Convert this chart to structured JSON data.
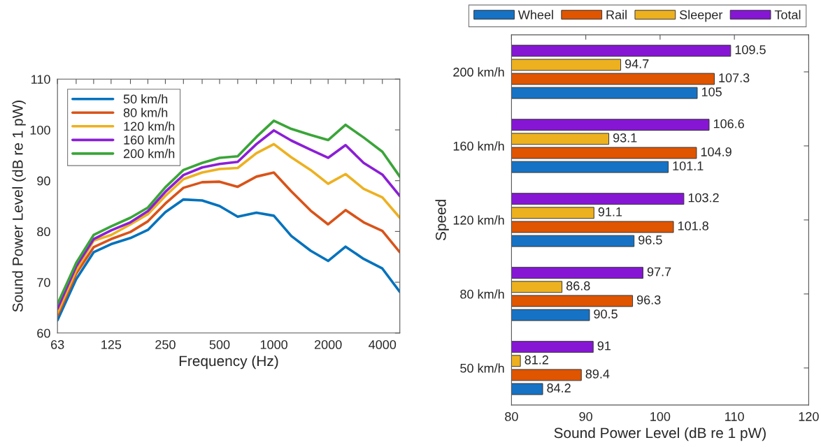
{
  "chart_data": [
    {
      "type": "line",
      "xlabel": "Frequency (Hz)",
      "ylabel": "Sound Power Level (dB re 1 pW)",
      "log": "x",
      "x": [
        63,
        80,
        100,
        125,
        160,
        200,
        250,
        315,
        400,
        500,
        630,
        800,
        1000,
        1250,
        1600,
        2000,
        2500,
        3150,
        4000,
        5000
      ],
      "xlim": [
        63,
        5000
      ],
      "xticks": [
        63,
        {
          "value": 80,
          "label": null
        },
        {
          "value": 100,
          "label": null
        },
        125,
        {
          "value": 160,
          "label": null
        },
        {
          "value": 200,
          "label": null
        },
        250,
        {
          "value": 315,
          "label": null
        },
        {
          "value": 400,
          "label": null
        },
        500,
        {
          "value": 630,
          "label": null
        },
        {
          "value": 800,
          "label": null
        },
        1000,
        {
          "value": 1250,
          "label": null
        },
        {
          "value": 1600,
          "label": null
        },
        2000,
        {
          "value": 2500,
          "label": null
        },
        {
          "value": 3150,
          "label": null
        },
        4000
      ],
      "ylim": [
        60,
        110
      ],
      "yticks": [
        60,
        70,
        80,
        90,
        100,
        110
      ],
      "grid": false,
      "legend": "top left",
      "marker": "none",
      "line_style": "solid",
      "series": [
        {
          "name": "50 km/h",
          "color": "#0072bd",
          "values": [
            62.5,
            70.6,
            75.9,
            77.5,
            78.7,
            80.3,
            83.8,
            86.3,
            86.1,
            85.0,
            82.9,
            83.7,
            83.1,
            79.1,
            76.2,
            74.2,
            77.0,
            74.6,
            72.7,
            68.1
          ]
        },
        {
          "name": "80 km/h",
          "color": "#d95319",
          "values": [
            63.4,
            71.7,
            76.9,
            78.5,
            79.9,
            82.0,
            85.5,
            88.6,
            89.7,
            89.8,
            88.8,
            90.8,
            91.6,
            87.9,
            84.1,
            81.4,
            84.2,
            81.8,
            80.1,
            75.9
          ]
        },
        {
          "name": "120 km/h",
          "color": "#edb120",
          "values": [
            64.0,
            72.3,
            78.2,
            79.3,
            81.4,
            83.4,
            87.0,
            90.3,
            91.6,
            92.3,
            92.5,
            95.4,
            97.2,
            94.6,
            92.1,
            89.4,
            91.3,
            88.4,
            86.7,
            82.7
          ]
        },
        {
          "name": "160 km/h",
          "color": "#8b1ed6",
          "values": [
            64.8,
            73.1,
            78.5,
            80.2,
            81.8,
            84.0,
            87.8,
            91.1,
            92.6,
            93.3,
            93.7,
            97.2,
            99.9,
            97.9,
            96.1,
            94.5,
            97.0,
            93.5,
            91.2,
            87.0
          ]
        },
        {
          "name": "200 km/h",
          "color": "#3aa539",
          "values": [
            65.7,
            73.8,
            79.3,
            81.0,
            82.7,
            84.7,
            88.7,
            92.1,
            93.5,
            94.5,
            94.8,
            98.6,
            101.8,
            100.2,
            99.0,
            98.0,
            101.0,
            98.5,
            95.7,
            90.8
          ]
        }
      ]
    },
    {
      "type": "bar",
      "orientation": "horizontal",
      "xlabel": "Sound Power Level (dB re 1 pW)",
      "ylabel": "Speed",
      "categories": [
        "200 km/h",
        "160 km/h",
        "120 km/h",
        "80 km/h",
        "50 km/h"
      ],
      "xlim": [
        80,
        120
      ],
      "xticks": [
        80,
        90,
        100,
        110,
        120
      ],
      "grid": false,
      "legend": "top",
      "data_labels": true,
      "series": [
        {
          "name": "Wheel",
          "color": "#1672c4",
          "values": [
            105,
            101.1,
            96.5,
            90.5,
            84.2
          ]
        },
        {
          "name": "Rail",
          "color": "#e05500",
          "values": [
            107.3,
            104.9,
            101.8,
            96.3,
            89.4
          ]
        },
        {
          "name": "Sleeper",
          "color": "#edb120",
          "values": [
            94.7,
            93.1,
            91.1,
            86.8,
            81.2
          ]
        },
        {
          "name": "Total",
          "color": "#8616d4",
          "values": [
            109.5,
            106.6,
            103.2,
            97.7,
            91
          ]
        }
      ]
    }
  ]
}
